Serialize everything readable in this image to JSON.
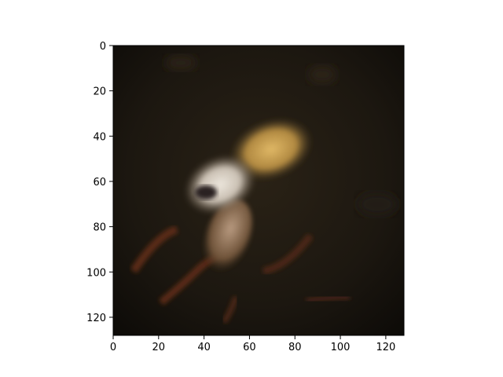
{
  "chart_data": {
    "type": "heatmap",
    "title": "",
    "xlabel": "",
    "ylabel": "",
    "x_range": [
      0,
      128
    ],
    "y_range": [
      128,
      0
    ],
    "y_inverted": true,
    "grid": false,
    "xticks": [
      0,
      20,
      40,
      60,
      80,
      100,
      120
    ],
    "yticks": [
      0,
      20,
      40,
      60,
      80,
      100,
      120
    ],
    "image_content": "dark brown low-resolution generated image with a pale yellow-white blob near the centre and faint reddish-brown streaks below",
    "colors": {
      "background": "#1c1710",
      "blob_light": "#dcd3c8",
      "blob_yellow": "#c9a256",
      "streak": "#5a2c17"
    }
  }
}
